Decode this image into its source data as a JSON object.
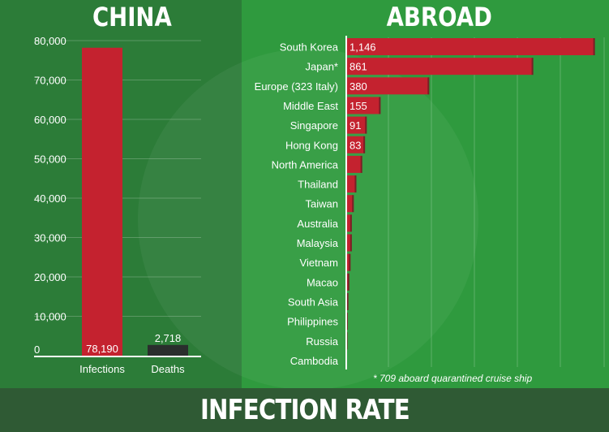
{
  "colors": {
    "bar": "#c4222f",
    "death_bar": "#2a2e2d",
    "text": "#ffffff",
    "grid": "rgba(255,255,255,0.22)"
  },
  "titles": {
    "left": "CHINA",
    "right": "ABROAD",
    "footer": "INFECTION RATE"
  },
  "note": "* 709 aboard quarantined cruise ship",
  "chart_data": [
    {
      "type": "bar",
      "title": "CHINA",
      "categories": [
        "Infections",
        "Deaths"
      ],
      "values": [
        78190,
        2718
      ],
      "value_labels": [
        "78,190",
        "2,718"
      ],
      "yticks": [
        "0",
        "10,000",
        "20,000",
        "30,000",
        "40,000",
        "50,000",
        "60,000",
        "70,000",
        "80,000"
      ],
      "ylim": [
        0,
        80000
      ],
      "grid": true
    },
    {
      "type": "bar",
      "orientation": "horizontal",
      "title": "ABROAD",
      "categories": [
        "South Korea",
        "Japan*",
        "Europe (323 Italy)",
        "Middle East",
        "Singapore",
        "Hong Kong",
        "North America",
        "Thailand",
        "Taiwan",
        "Australia",
        "Malaysia",
        "Vietnam",
        "Macao",
        "South Asia",
        "Philippines",
        "Russia",
        "Cambodia"
      ],
      "values": [
        1146,
        861,
        380,
        155,
        91,
        83,
        70,
        43,
        31,
        22,
        22,
        16,
        10,
        6,
        3,
        2,
        1
      ],
      "value_labels": [
        "1,146",
        "861",
        "380",
        "155",
        "91",
        "83",
        "",
        "",
        "",
        "",
        "",
        "",
        "",
        "",
        "",
        "",
        ""
      ],
      "xlim": [
        0,
        1200
      ],
      "grid": true
    }
  ]
}
